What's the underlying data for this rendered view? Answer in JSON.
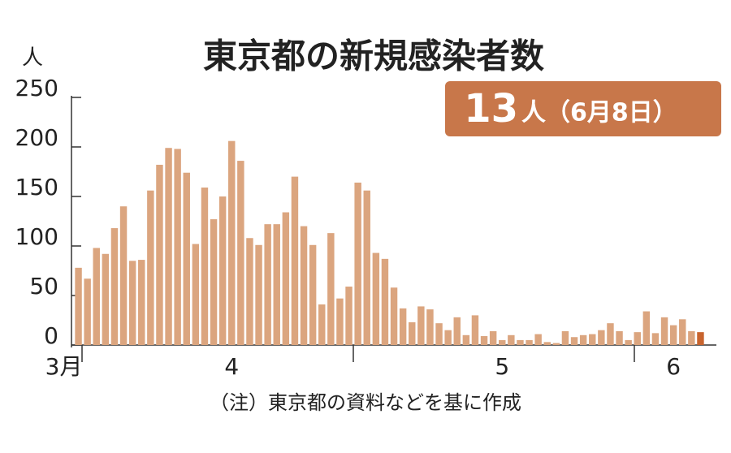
{
  "chart_data": {
    "type": "bar",
    "title": "東京都の新規感染者数",
    "y_label": "人",
    "annotation": {
      "number": "13",
      "unit": "人（6月8日）"
    },
    "note": "（注）東京都の資料などを基に作成",
    "categories": [
      "3月",
      null,
      null,
      null,
      null,
      null,
      null,
      null,
      null,
      null,
      null,
      null,
      null,
      null,
      null,
      null,
      null,
      "4",
      null,
      null,
      null,
      null,
      null,
      null,
      null,
      null,
      null,
      null,
      null,
      null,
      null,
      null,
      null,
      null,
      null,
      null,
      null,
      null,
      null,
      null,
      null,
      null,
      null,
      null,
      null,
      null,
      null,
      "5",
      null,
      null,
      null,
      null,
      null,
      null,
      null,
      null,
      null,
      null,
      null,
      null,
      null,
      null,
      null,
      null,
      null,
      null,
      "6",
      null,
      null,
      null
    ],
    "values": [
      78,
      67,
      98,
      92,
      118,
      140,
      85,
      86,
      156,
      182,
      199,
      198,
      174,
      102,
      159,
      127,
      150,
      206,
      186,
      108,
      101,
      122,
      122,
      134,
      170,
      120,
      101,
      41,
      113,
      47,
      59,
      164,
      156,
      93,
      87,
      58,
      37,
      23,
      39,
      36,
      22,
      15,
      28,
      10,
      30,
      9,
      14,
      5,
      10,
      5,
      5,
      11,
      3,
      2,
      14,
      8,
      10,
      11,
      15,
      22,
      14,
      5,
      13,
      34,
      12,
      28,
      20,
      26,
      14,
      13
    ],
    "colors": [
      "#dba57f",
      "#dba57f",
      "#dba57f",
      "#dba57f",
      "#dba57f",
      "#dba57f",
      "#dba57f",
      "#dba57f",
      "#dba57f",
      "#dba57f",
      "#dba57f",
      "#dba57f",
      "#dba57f",
      "#dba57f",
      "#dba57f",
      "#dba57f",
      "#dba57f",
      "#dba57f",
      "#dba57f",
      "#dba57f",
      "#dba57f",
      "#dba57f",
      "#dba57f",
      "#dba57f",
      "#dba57f",
      "#dba57f",
      "#dba57f",
      "#dba57f",
      "#dba57f",
      "#dba57f",
      "#dba57f",
      "#dba57f",
      "#dba57f",
      "#dba57f",
      "#dba57f",
      "#dba57f",
      "#dba57f",
      "#dba57f",
      "#dba57f",
      "#dba57f",
      "#dba57f",
      "#dba57f",
      "#dba57f",
      "#dba57f",
      "#dba57f",
      "#dba57f",
      "#dba57f",
      "#dba57f",
      "#dba57f",
      "#dba57f",
      "#dba57f",
      "#dba57f",
      "#dba57f",
      "#dba57f",
      "#dba57f",
      "#dba57f",
      "#dba57f",
      "#dba57f",
      "#dba57f",
      "#dba57f",
      "#dba57f",
      "#dba57f",
      "#dba57f",
      "#dba57f",
      "#dba57f",
      "#dba57f",
      "#dba57f",
      "#dba57f",
      "#dba57f",
      "#c8642e"
    ],
    "ylim": [
      0,
      250
    ],
    "yticks": [
      0,
      50,
      100,
      150,
      200,
      250
    ],
    "grid": false
  }
}
